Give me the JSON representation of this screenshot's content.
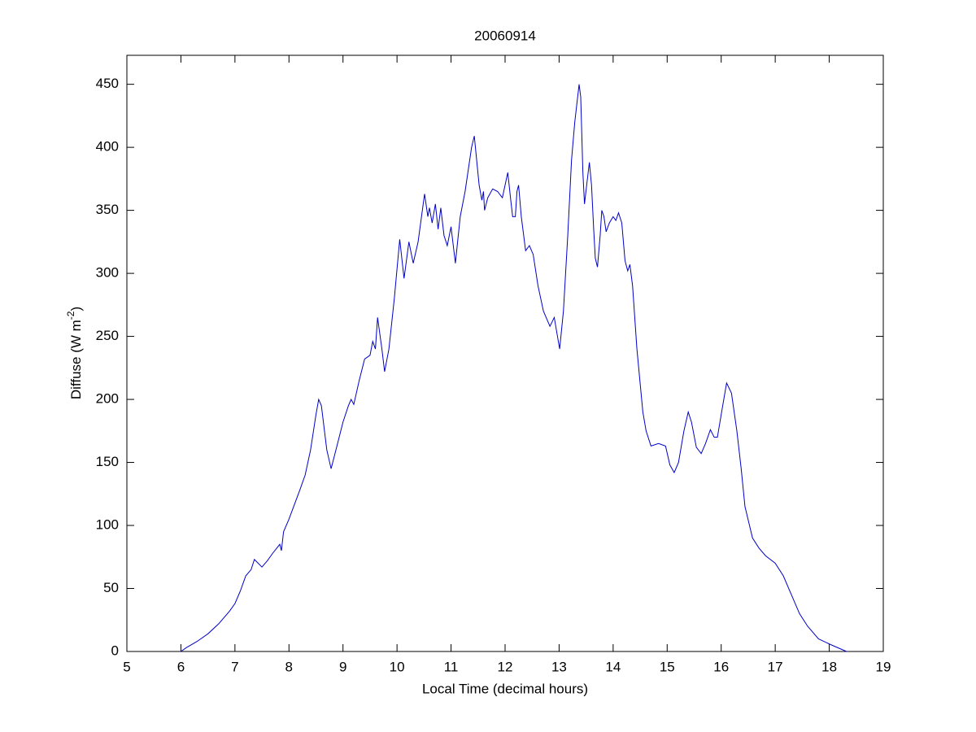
{
  "chart_data": {
    "type": "line",
    "title": "20060914",
    "xlabel": "Local Time (decimal hours)",
    "ylabel": "Diffuse (W m",
    "ylabel_superscript": "-2",
    "ylabel_suffix": ")",
    "x": [
      6.0,
      6.1,
      6.3,
      6.5,
      6.7,
      6.9,
      7.0,
      7.1,
      7.2,
      7.3,
      7.36,
      7.5,
      7.6,
      7.7,
      7.83,
      7.86,
      7.9,
      8.0,
      8.2,
      8.3,
      8.4,
      8.5,
      8.55,
      8.6,
      8.7,
      8.78,
      8.9,
      9.0,
      9.1,
      9.15,
      9.2,
      9.3,
      9.4,
      9.5,
      9.55,
      9.6,
      9.64,
      9.72,
      9.77,
      9.85,
      9.95,
      10.05,
      10.13,
      10.22,
      10.3,
      10.39,
      10.51,
      10.57,
      10.6,
      10.65,
      10.71,
      10.76,
      10.81,
      10.87,
      10.93,
      11.0,
      11.08,
      11.17,
      11.26,
      11.38,
      11.43,
      11.52,
      11.57,
      11.6,
      11.62,
      11.68,
      11.77,
      11.86,
      11.95,
      12.0,
      12.05,
      12.1,
      12.14,
      12.19,
      12.22,
      12.25,
      12.3,
      12.38,
      12.45,
      12.52,
      12.61,
      12.71,
      12.83,
      12.91,
      13.01,
      13.08,
      13.16,
      13.23,
      13.29,
      13.37,
      13.4,
      13.44,
      13.47,
      13.51,
      13.56,
      13.6,
      13.64,
      13.67,
      13.71,
      13.76,
      13.79,
      13.83,
      13.87,
      13.93,
      14.0,
      14.05,
      14.1,
      14.16,
      14.22,
      14.27,
      14.31,
      14.36,
      14.44,
      14.55,
      14.61,
      14.7,
      14.84,
      14.97,
      15.05,
      15.13,
      15.21,
      15.31,
      15.39,
      15.45,
      15.54,
      15.63,
      15.71,
      15.8,
      15.87,
      15.93,
      16.02,
      16.1,
      16.19,
      16.29,
      16.37,
      16.44,
      16.58,
      16.7,
      16.82,
      17.0,
      17.15,
      17.3,
      17.45,
      17.6,
      17.8,
      18.05,
      18.32
    ],
    "series": [
      {
        "color": "#0000c8",
        "values": [
          0,
          3,
          8,
          14,
          22,
          32,
          38,
          48,
          60,
          65,
          73,
          67,
          72,
          78,
          85,
          80,
          95,
          105,
          128,
          140,
          160,
          188,
          200,
          195,
          160,
          145,
          165,
          182,
          195,
          200,
          196,
          215,
          232,
          235,
          246,
          240,
          265,
          240,
          222,
          240,
          280,
          327,
          296,
          325,
          308,
          325,
          363,
          345,
          352,
          340,
          355,
          335,
          352,
          330,
          322,
          337,
          308,
          345,
          365,
          400,
          409,
          370,
          358,
          365,
          350,
          360,
          367,
          365,
          360,
          370,
          380,
          360,
          345,
          345,
          365,
          370,
          345,
          318,
          322,
          315,
          290,
          270,
          258,
          265,
          240,
          270,
          330,
          390,
          420,
          450,
          440,
          380,
          355,
          370,
          388,
          370,
          335,
          312,
          305,
          330,
          350,
          345,
          333,
          340,
          345,
          342,
          348,
          340,
          310,
          302,
          307,
          290,
          240,
          190,
          175,
          163,
          165,
          163,
          148,
          142,
          150,
          175,
          190,
          182,
          162,
          157,
          165,
          176,
          170,
          170,
          193,
          213,
          205,
          175,
          145,
          115,
          90,
          82,
          76,
          70,
          60,
          45,
          30,
          20,
          10,
          5,
          0
        ]
      }
    ],
    "xlim": [
      5,
      19
    ],
    "xticks": [
      5,
      6,
      7,
      8,
      9,
      10,
      11,
      12,
      13,
      14,
      15,
      16,
      17,
      18,
      19
    ],
    "ylim": [
      0,
      473
    ],
    "yticks": [
      0,
      50,
      100,
      150,
      200,
      250,
      300,
      350,
      400,
      450
    ],
    "grid": false
  }
}
